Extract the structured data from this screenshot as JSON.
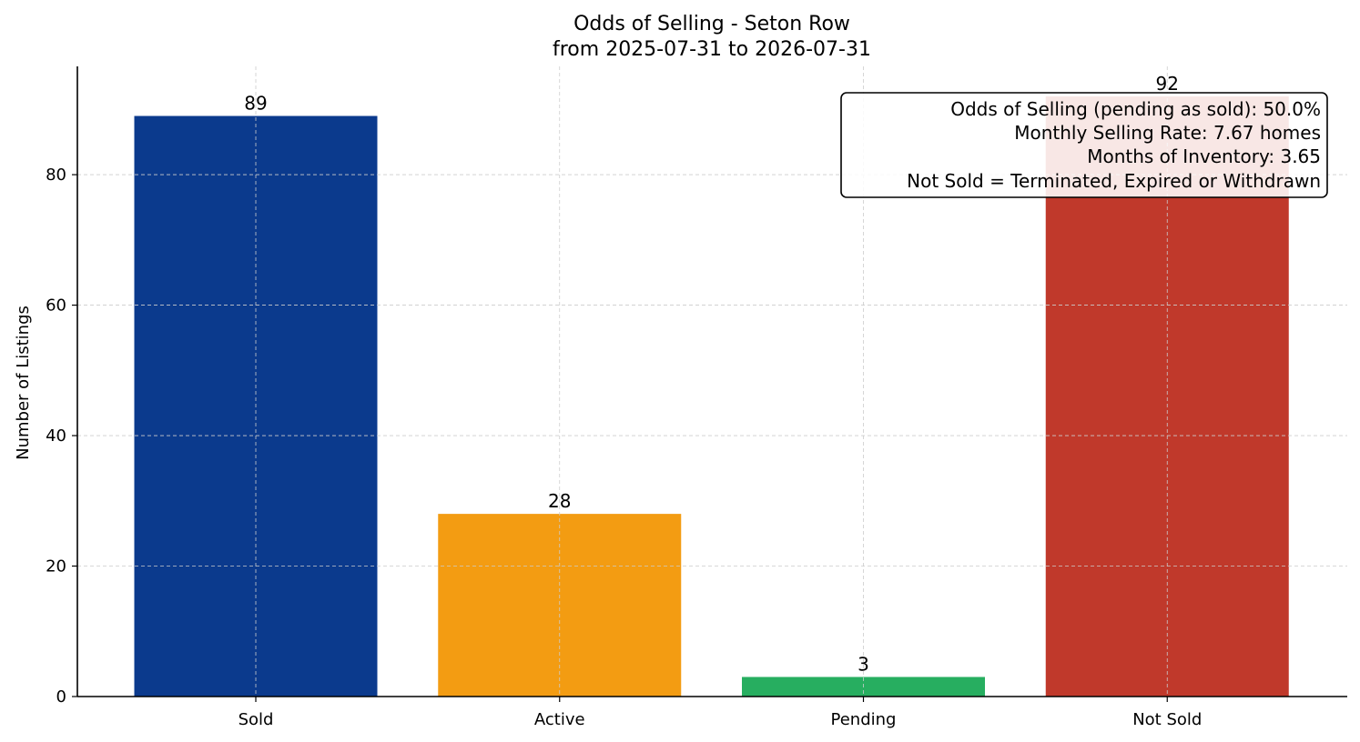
{
  "chart_data": {
    "type": "bar",
    "title": "Odds of Selling - Seton Row",
    "subtitle": "from 2025-07-31 to 2026-07-31",
    "ylabel": "Number of Listings",
    "xlabel": "",
    "categories": [
      "Sold",
      "Active",
      "Pending",
      "Not Sold"
    ],
    "values": [
      89,
      28,
      3,
      92
    ],
    "colors": [
      "#0b3a8d",
      "#f39c12",
      "#27ae60",
      "#c0392b"
    ],
    "ylim": [
      0,
      96.6
    ],
    "yticks": [
      0,
      20,
      40,
      60,
      80
    ],
    "grid": true,
    "info_box": {
      "placement": "top-right",
      "lines": [
        "Odds of Selling (pending as sold): 50.0%",
        "Monthly Selling Rate: 7.67 homes",
        "Months of Inventory: 3.65",
        "Not Sold = Terminated, Expired or Withdrawn"
      ]
    }
  }
}
